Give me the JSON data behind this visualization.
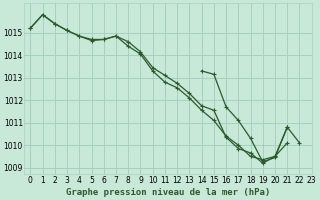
{
  "title": "Graphe pression niveau de la mer (hPa)",
  "background_color": "#c8e8d8",
  "grid_color": "#a8d0c0",
  "line_color": "#2d5a2d",
  "xlim": [
    -0.5,
    23
  ],
  "ylim": [
    1008.7,
    1016.3
  ],
  "yticks": [
    1009,
    1010,
    1011,
    1012,
    1013,
    1014,
    1015
  ],
  "xticks": [
    0,
    1,
    2,
    3,
    4,
    5,
    6,
    7,
    8,
    9,
    10,
    11,
    12,
    13,
    14,
    15,
    16,
    17,
    18,
    19,
    20,
    21,
    22,
    23
  ],
  "y1": [
    1015.2,
    1015.8,
    1015.4,
    1015.1,
    1014.85,
    1014.7,
    1014.7,
    1014.85,
    1014.4,
    1014.05,
    1013.3,
    1012.8,
    1012.55,
    1012.1,
    1011.55,
    1011.1,
    1010.4,
    1010.0,
    1009.5,
    1009.35,
    1009.5,
    1010.1,
    null,
    null
  ],
  "y2": [
    1015.2,
    1015.8,
    1015.4,
    1015.1,
    1014.85,
    1014.65,
    1014.7,
    1014.85,
    1014.6,
    1014.15,
    1013.45,
    1013.1,
    1012.75,
    1012.3,
    1011.75,
    1011.55,
    1010.35,
    1009.85,
    1009.65,
    1009.2,
    1009.5,
    1010.8,
    null,
    null
  ],
  "y3": [
    null,
    null,
    null,
    null,
    null,
    null,
    null,
    null,
    null,
    null,
    null,
    null,
    null,
    null,
    1013.3,
    1013.15,
    1011.7,
    1011.1,
    1010.3,
    1009.25,
    1009.45,
    1010.8,
    1010.1,
    null
  ],
  "marker": "+",
  "marker_size": 3,
  "marker_edge_width": 0.8,
  "line_width": 0.9,
  "tick_fontsize": 5.5,
  "title_fontsize": 6.5,
  "title_fontweight": "bold"
}
